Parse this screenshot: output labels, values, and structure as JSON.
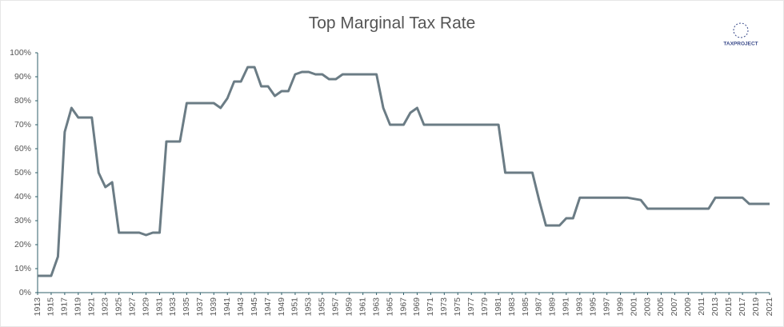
{
  "chart_data": {
    "type": "line",
    "title": "Top Marginal Tax Rate",
    "logo": "TAXPROJECT",
    "x": [
      1913,
      1914,
      1915,
      1916,
      1917,
      1918,
      1919,
      1920,
      1921,
      1922,
      1923,
      1924,
      1925,
      1926,
      1927,
      1928,
      1929,
      1930,
      1931,
      1932,
      1933,
      1934,
      1935,
      1936,
      1937,
      1938,
      1939,
      1940,
      1941,
      1942,
      1943,
      1944,
      1945,
      1946,
      1947,
      1948,
      1949,
      1950,
      1951,
      1952,
      1953,
      1954,
      1955,
      1956,
      1957,
      1958,
      1959,
      1960,
      1961,
      1962,
      1963,
      1964,
      1965,
      1966,
      1967,
      1968,
      1969,
      1970,
      1971,
      1972,
      1973,
      1974,
      1975,
      1976,
      1977,
      1978,
      1979,
      1980,
      1981,
      1982,
      1983,
      1984,
      1985,
      1986,
      1987,
      1988,
      1989,
      1990,
      1991,
      1992,
      1993,
      1994,
      1995,
      1996,
      1997,
      1998,
      1999,
      2000,
      2001,
      2002,
      2003,
      2004,
      2005,
      2006,
      2007,
      2008,
      2009,
      2010,
      2011,
      2012,
      2013,
      2014,
      2015,
      2016,
      2017,
      2018,
      2019,
      2020,
      2021
    ],
    "series": [
      {
        "color": "#6b7c85",
        "values": [
          7,
          7,
          7,
          15,
          67,
          77,
          73,
          73,
          73,
          50,
          44,
          46,
          25,
          25,
          25,
          25,
          24,
          25,
          25,
          63,
          63,
          63,
          79,
          79,
          79,
          79,
          79,
          77,
          81,
          88,
          88,
          94,
          94,
          86,
          86,
          82,
          84,
          84,
          91,
          92,
          92,
          91,
          91,
          89,
          89,
          91,
          91,
          91,
          91,
          91,
          91,
          77,
          70,
          70,
          70,
          75,
          77,
          70,
          70,
          70,
          70,
          70,
          70,
          70,
          70,
          70,
          70,
          70,
          70,
          50,
          50,
          50,
          50,
          50,
          38.5,
          28,
          28,
          28,
          31,
          31,
          39.6,
          39.6,
          39.6,
          39.6,
          39.6,
          39.6,
          39.6,
          39.6,
          39.1,
          38.6,
          35,
          35,
          35,
          35,
          35,
          35,
          35,
          35,
          35,
          35,
          39.6,
          39.6,
          39.6,
          39.6,
          39.6,
          37,
          37,
          37,
          37
        ]
      }
    ],
    "xlim": [
      1913,
      2021
    ],
    "xticks": [
      1913,
      1915,
      1917,
      1919,
      1921,
      1923,
      1925,
      1927,
      1929,
      1931,
      1933,
      1935,
      1937,
      1939,
      1941,
      1943,
      1945,
      1947,
      1949,
      1951,
      1953,
      1955,
      1957,
      1959,
      1961,
      1963,
      1965,
      1967,
      1969,
      1971,
      1973,
      1975,
      1977,
      1979,
      1981,
      1983,
      1985,
      1987,
      1989,
      1991,
      1993,
      1995,
      1997,
      1999,
      2001,
      2003,
      2005,
      2007,
      2009,
      2011,
      2013,
      2015,
      2017,
      2019,
      2021
    ],
    "ylim": [
      0,
      100
    ],
    "yticks": [
      {
        "value": 0,
        "label": "0%"
      },
      {
        "value": 10,
        "label": "10%"
      },
      {
        "value": 20,
        "label": "20%"
      },
      {
        "value": 30,
        "label": "30%"
      },
      {
        "value": 40,
        "label": "40%"
      },
      {
        "value": 50,
        "label": "50%"
      },
      {
        "value": 60,
        "label": "60%"
      },
      {
        "value": 70,
        "label": "70%"
      },
      {
        "value": 80,
        "label": "80%"
      },
      {
        "value": 90,
        "label": "90%"
      },
      {
        "value": 100,
        "label": "100%"
      }
    ],
    "grid": false
  }
}
